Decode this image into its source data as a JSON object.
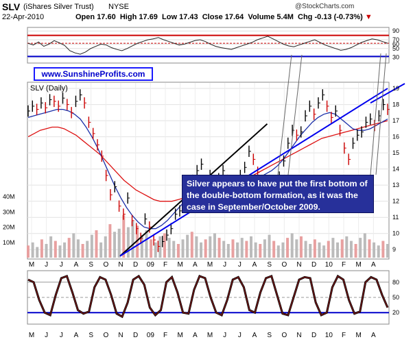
{
  "header": {
    "ticker": "SLV",
    "name": "(iShares Silver Trust)",
    "exchange": "NYSE",
    "date": "22-Apr-2010",
    "open_label": "Open",
    "open": "17.60",
    "high_label": "High",
    "high": "17.69",
    "low_label": "Low",
    "low": "17.43",
    "close_label": "Close",
    "close": "17.64",
    "volume_label": "Volume",
    "volume": "5.4M",
    "chg_label": "Chg",
    "chg": "-0.13 (-0.73%)",
    "copyright": "@StockCharts.com"
  },
  "watermark": "www.SunshineProfits.com",
  "annotation": "Silver appears to have put the first bottom of the double-bottom formation, as it was the case in September/October 2009.",
  "colors": {
    "price_up": "#000000",
    "price_down": "#cc0000",
    "ma_fast": "#1a2ea8",
    "ma_slow": "#dd1111",
    "trendline_blue": "#0000ee",
    "trendline_black": "#000000",
    "volume": "#bbbbbb",
    "volume_down": "#e8a0a0",
    "rsi_line": "#222222",
    "stoch_line": "#7a1a1a",
    "stoch_fill": "#000000",
    "band_red": "#cc0000",
    "band_blue": "#0000cc"
  },
  "chart_data": [
    {
      "panel": "top-indicator",
      "type": "line",
      "yticks": [
        30,
        50,
        60,
        70,
        90
      ],
      "ylim": [
        20,
        95
      ],
      "overbought": 80,
      "oversold": 32,
      "values": [
        62,
        58,
        65,
        55,
        60,
        68,
        63,
        57,
        45,
        40,
        37,
        42,
        50,
        55,
        60,
        58,
        52,
        48,
        45,
        50,
        56,
        62,
        66,
        70,
        72,
        75,
        70,
        66,
        62,
        58,
        60,
        64,
        68,
        70,
        66,
        60,
        55,
        52,
        50,
        48,
        52,
        56,
        60,
        64,
        70,
        74,
        78,
        72,
        66,
        60,
        56,
        54,
        58,
        62,
        66,
        70,
        64,
        58,
        54,
        50,
        46,
        48,
        52,
        58,
        64,
        68,
        72,
        70,
        66,
        62
      ]
    },
    {
      "panel": "price",
      "label": "SLV (Daily)",
      "type": "line",
      "yticks": [
        9,
        10,
        11,
        12,
        13,
        14,
        15,
        16,
        17,
        18,
        19
      ],
      "ylim": [
        8.5,
        19.3
      ],
      "months": [
        "M",
        "J",
        "J",
        "A",
        "S",
        "O",
        "N",
        "D",
        "09",
        "F",
        "M",
        "A",
        "M",
        "J",
        "J",
        "A",
        "S",
        "O",
        "N",
        "D",
        "10",
        "F",
        "M",
        "A"
      ],
      "close": [
        17.6,
        17.9,
        17.7,
        18.1,
        17.8,
        18.3,
        18.2,
        17.9,
        18.4,
        18.0,
        17.5,
        18.2,
        18.6,
        18.1,
        16.9,
        16.2,
        15.5,
        14.8,
        13.6,
        12.4,
        12.9,
        11.7,
        11.2,
        12.2,
        10.8,
        10.3,
        9.7,
        10.9,
        10.4,
        9.6,
        9.2,
        9.5,
        9.9,
        10.3,
        11.2,
        11.4,
        11.9,
        12.6,
        13.3,
        13.9,
        14.3,
        13.2,
        13.6,
        12.9,
        13.4,
        13.9,
        13.3,
        12.6,
        12.8,
        13.6,
        14.1,
        15.1,
        14.6,
        13.8,
        13.3,
        12.9,
        12.7,
        13.1,
        13.5,
        14.5,
        15.6,
        16.4,
        16.1,
        16.3,
        17.3,
        17.9,
        17.4,
        18.1,
        18.6,
        17.9,
        17.2,
        17.6,
        16.4,
        15.3,
        14.6,
        15.6,
        16.1,
        16.3,
        16.9,
        17.1,
        16.7,
        17.3,
        18.0,
        17.7
      ],
      "ma_fast": [
        17.2,
        17.3,
        17.4,
        17.5,
        17.6,
        17.7,
        17.7,
        17.6,
        17.4,
        17.1,
        16.6,
        16.0,
        15.3,
        14.5,
        13.7,
        12.9,
        12.2,
        11.6,
        11.1,
        10.7,
        10.4,
        10.3,
        10.3,
        10.5,
        10.8,
        11.2,
        11.6,
        12.0,
        12.4,
        12.8,
        13.0,
        13.2,
        13.3,
        13.3,
        13.2,
        13.1,
        13.0,
        13.0,
        13.1,
        13.3,
        13.5,
        13.7,
        13.9,
        14.2,
        14.6,
        15.1,
        15.6,
        16.1,
        16.5,
        16.9,
        17.2,
        17.4,
        17.5,
        17.4,
        17.1,
        16.8,
        16.5,
        16.4,
        16.4,
        16.5,
        16.7,
        16.9,
        17.1
      ],
      "ma_slow": [
        16.0,
        16.2,
        16.4,
        16.5,
        16.6,
        16.6,
        16.5,
        16.3,
        16.1,
        15.8,
        15.5,
        15.2,
        14.9,
        14.5,
        14.1,
        13.7,
        13.3,
        13.0,
        12.7,
        12.5,
        12.3,
        12.1,
        12.0,
        12.0,
        12.0,
        12.1,
        12.2,
        12.3,
        12.4,
        12.5,
        12.6,
        12.7,
        12.8,
        12.9,
        13.0,
        13.1,
        13.3,
        13.5,
        13.7,
        13.9,
        14.1,
        14.3,
        14.5,
        14.7,
        14.9,
        15.1,
        15.3,
        15.5,
        15.7,
        15.9,
        16.0,
        16.1,
        16.2,
        16.3,
        16.4,
        16.5,
        16.6,
        16.7,
        16.8,
        16.9,
        17.0
      ],
      "trendlines": [
        {
          "color": "black",
          "from": {
            "t": 0.0,
            "y": 8.6
          },
          "to": {
            "t": 0.55,
            "y": 16.8
          }
        },
        {
          "color": "blue",
          "from": {
            "t": 0.0,
            "y": 8.6
          },
          "to": {
            "t": 1.0,
            "y": 19.0
          }
        }
      ]
    },
    {
      "panel": "volume",
      "type": "bar",
      "yticks": [
        "10M",
        "20M",
        "30M",
        "40M"
      ],
      "ylim": [
        0,
        45
      ],
      "values": [
        8,
        10,
        7,
        12,
        9,
        14,
        11,
        8,
        10,
        13,
        16,
        12,
        9,
        11,
        15,
        18,
        10,
        14,
        22,
        17,
        19,
        28,
        20,
        24,
        21,
        15,
        18,
        12,
        10,
        14,
        16,
        13,
        11,
        9,
        12,
        15,
        17,
        14,
        10,
        12,
        14,
        16,
        13,
        11,
        9,
        12,
        10,
        13,
        11,
        14,
        10,
        9,
        12,
        15,
        11,
        8,
        10,
        13,
        16,
        12,
        14,
        11,
        9,
        12,
        10,
        8,
        11,
        13,
        10,
        12,
        14,
        11,
        9,
        13,
        16,
        12,
        10,
        8,
        11,
        9
      ]
    },
    {
      "panel": "stochastic",
      "type": "line",
      "yticks": [
        20,
        50,
        80
      ],
      "ylim": [
        0,
        100
      ],
      "months": [
        "M",
        "J",
        "J",
        "A",
        "S",
        "O",
        "N",
        "D",
        "09",
        "F",
        "M",
        "A",
        "M",
        "J",
        "J",
        "A",
        "S",
        "O",
        "N",
        "D",
        "10",
        "F",
        "M",
        "A"
      ],
      "values": [
        85,
        80,
        45,
        20,
        15,
        55,
        88,
        92,
        60,
        25,
        18,
        22,
        70,
        90,
        85,
        55,
        18,
        12,
        40,
        85,
        92,
        75,
        30,
        15,
        25,
        80,
        90,
        60,
        20,
        18,
        65,
        92,
        88,
        50,
        20,
        15,
        45,
        85,
        90,
        70,
        25,
        20,
        60,
        88,
        92,
        55,
        18,
        15,
        50,
        85,
        90,
        88,
        40,
        15,
        20,
        70,
        92,
        85,
        45,
        18,
        22,
        80,
        90,
        85,
        55,
        30
      ]
    }
  ]
}
